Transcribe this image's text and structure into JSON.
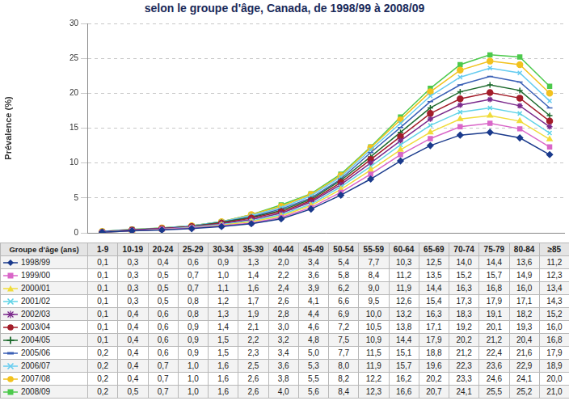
{
  "chart_data": {
    "type": "line",
    "title": "selon le groupe d'âge, Canada, de 1998/99 à 2008/09",
    "x_label": "Groupe d'âge (ans)",
    "y_label": "Prévalence (%)",
    "categories": [
      "1-9",
      "10-19",
      "20-24",
      "25-29",
      "30-34",
      "35-39",
      "40-44",
      "45-49",
      "50-54",
      "55-59",
      "60-64",
      "65-69",
      "70-74",
      "75-79",
      "80-84",
      "≥85"
    ],
    "ylim": [
      0,
      30
    ],
    "yticks": [
      0,
      5,
      10,
      15,
      20,
      25,
      30
    ],
    "grid": true,
    "legend": "bottom",
    "tick_labels": "y",
    "series": [
      {
        "name": "1998/99",
        "color": "#1a3a8c",
        "marker": "diamond",
        "values": [
          0.1,
          0.3,
          0.4,
          0.6,
          0.9,
          1.3,
          2.0,
          3.4,
          5.4,
          7.7,
          10.3,
          12.5,
          14.0,
          14.4,
          13.6,
          11.2
        ],
        "value_labels": [
          "0,1",
          "0,3",
          "0,4",
          "0,6",
          "0,9",
          "1,3",
          "2,0",
          "3,4",
          "5,4",
          "7,7",
          "10,3",
          "12,5",
          "14,0",
          "14,4",
          "13,6",
          "11,2"
        ]
      },
      {
        "name": "1999/00",
        "color": "#d966c8",
        "marker": "square",
        "values": [
          0.1,
          0.3,
          0.5,
          0.7,
          1.0,
          1.4,
          2.2,
          3.6,
          5.8,
          8.4,
          11.2,
          13.5,
          15.2,
          15.7,
          14.9,
          12.3
        ],
        "value_labels": [
          "0,1",
          "0,3",
          "0,5",
          "0,7",
          "1,0",
          "1,4",
          "2,2",
          "3,6",
          "5,8",
          "8,4",
          "11,2",
          "13,5",
          "15,2",
          "15,7",
          "14,9",
          "12,3"
        ]
      },
      {
        "name": "2000/01",
        "color": "#f0dc3a",
        "marker": "triangle",
        "values": [
          0.1,
          0.3,
          0.5,
          0.7,
          1.1,
          1.6,
          2.4,
          3.9,
          6.2,
          9.0,
          11.9,
          14.4,
          16.3,
          16.8,
          16.0,
          13.4
        ],
        "value_labels": [
          "0,1",
          "0,3",
          "0,5",
          "0,7",
          "1,1",
          "1,6",
          "2,4",
          "3,9",
          "6,2",
          "9,0",
          "11,9",
          "14,4",
          "16,3",
          "16,8",
          "16,0",
          "13,4"
        ]
      },
      {
        "name": "2001/02",
        "color": "#5fd3e6",
        "marker": "x",
        "values": [
          0.1,
          0.3,
          0.5,
          0.8,
          1.2,
          1.7,
          2.6,
          4.1,
          6.6,
          9.5,
          12.6,
          15.4,
          17.3,
          17.9,
          17.1,
          14.3
        ],
        "value_labels": [
          "0,1",
          "0,3",
          "0,5",
          "0,8",
          "1,2",
          "1,7",
          "2,6",
          "4,1",
          "6,6",
          "9,5",
          "12,6",
          "15,4",
          "17,3",
          "17,9",
          "17,1",
          "14,3"
        ]
      },
      {
        "name": "2002/03",
        "color": "#7b2a8c",
        "marker": "star",
        "values": [
          0.1,
          0.4,
          0.6,
          0.8,
          1.3,
          1.9,
          2.8,
          4.4,
          6.9,
          10.0,
          13.2,
          16.3,
          18.3,
          19.1,
          18.2,
          15.2
        ],
        "value_labels": [
          "0,1",
          "0,4",
          "0,6",
          "0,8",
          "1,3",
          "1,9",
          "2,8",
          "4,4",
          "6,9",
          "10,0",
          "13,2",
          "16,3",
          "18,3",
          "19,1",
          "18,2",
          "15,2"
        ]
      },
      {
        "name": "2003/04",
        "color": "#a31d2a",
        "marker": "circle",
        "values": [
          0.1,
          0.4,
          0.6,
          0.9,
          1.4,
          2.1,
          3.0,
          4.6,
          7.2,
          10.5,
          13.8,
          17.1,
          19.2,
          20.1,
          19.3,
          16.0
        ],
        "value_labels": [
          "0,1",
          "0,4",
          "0,6",
          "0,9",
          "1,4",
          "2,1",
          "3,0",
          "4,6",
          "7,2",
          "10,5",
          "13,8",
          "17,1",
          "19,2",
          "20,1",
          "19,3",
          "16,0"
        ]
      },
      {
        "name": "2004/05",
        "color": "#1e6b2e",
        "marker": "plus",
        "values": [
          0.1,
          0.4,
          0.6,
          0.9,
          1.5,
          2.2,
          3.2,
          4.8,
          7.5,
          10.9,
          14.4,
          17.9,
          20.2,
          21.2,
          20.4,
          16.8
        ],
        "value_labels": [
          "0,1",
          "0,4",
          "0,6",
          "0,9",
          "1,5",
          "2,2",
          "3,2",
          "4,8",
          "7,5",
          "10,9",
          "14,4",
          "17,9",
          "20,2",
          "21,2",
          "20,4",
          "16,8"
        ]
      },
      {
        "name": "2005/06",
        "color": "#3a5fb5",
        "marker": "dash",
        "values": [
          0.2,
          0.4,
          0.6,
          0.9,
          1.5,
          2.3,
          3.4,
          5.0,
          7.7,
          11.5,
          15.1,
          18.8,
          21.2,
          22.4,
          21.6,
          17.9
        ],
        "value_labels": [
          "0,2",
          "0,4",
          "0,6",
          "0,9",
          "1,5",
          "2,3",
          "3,4",
          "5,0",
          "7,7",
          "11,5",
          "15,1",
          "18,8",
          "21,2",
          "22,4",
          "21,6",
          "17,9"
        ]
      },
      {
        "name": "2006/07",
        "color": "#66ccf0",
        "marker": "x",
        "values": [
          0.2,
          0.4,
          0.7,
          1.0,
          1.6,
          2.5,
          3.6,
          5.3,
          8.0,
          11.9,
          15.7,
          19.6,
          22.3,
          23.6,
          22.9,
          18.9
        ],
        "value_labels": [
          "0,2",
          "0,4",
          "0,7",
          "1,0",
          "1,6",
          "2,5",
          "3,6",
          "5,3",
          "8,0",
          "11,9",
          "15,7",
          "19,6",
          "22,3",
          "23,6",
          "22,9",
          "18,9"
        ]
      },
      {
        "name": "2007/08",
        "color": "#f2c21e",
        "marker": "circle",
        "values": [
          0.2,
          0.4,
          0.7,
          1.0,
          1.6,
          2.6,
          3.8,
          5.5,
          8.2,
          12.2,
          16.2,
          20.2,
          23.3,
          24.6,
          24.1,
          20.0
        ],
        "value_labels": [
          "0,2",
          "0,4",
          "0,7",
          "1,0",
          "1,6",
          "2,6",
          "3,8",
          "5,5",
          "8,2",
          "12,2",
          "16,2",
          "20,2",
          "23,3",
          "24,6",
          "24,1",
          "20,0"
        ]
      },
      {
        "name": "2008/09",
        "color": "#4cc94c",
        "marker": "square",
        "values": [
          0.2,
          0.5,
          0.7,
          1.0,
          1.6,
          2.6,
          4.0,
          5.6,
          8.4,
          12.3,
          16.6,
          20.7,
          24.1,
          25.5,
          25.2,
          21.0
        ],
        "value_labels": [
          "0,2",
          "0,5",
          "0,7",
          "1,0",
          "1,6",
          "2,6",
          "4,0",
          "5,6",
          "8,4",
          "12,3",
          "16,6",
          "20,7",
          "24,1",
          "25,5",
          "25,2",
          "21,0"
        ]
      }
    ]
  }
}
